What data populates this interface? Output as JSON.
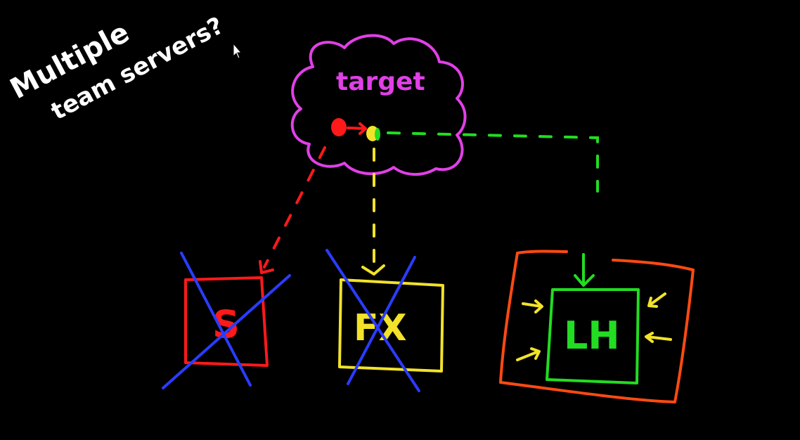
{
  "note": {
    "line1": "Multiple",
    "line2": "team servers?"
  },
  "cloud": {
    "label": "target"
  },
  "boxes": {
    "s": {
      "label": "S"
    },
    "fx": {
      "label": "FX"
    },
    "lh": {
      "label": "LH"
    }
  },
  "colors": {
    "background": "#000000",
    "white": "#ffffff",
    "magenta": "#e040e6",
    "red": "#ff1a1a",
    "yellow": "#f2e22a",
    "green": "#22dd22",
    "blue": "#2a3cff",
    "orange": "#ff4a12"
  }
}
